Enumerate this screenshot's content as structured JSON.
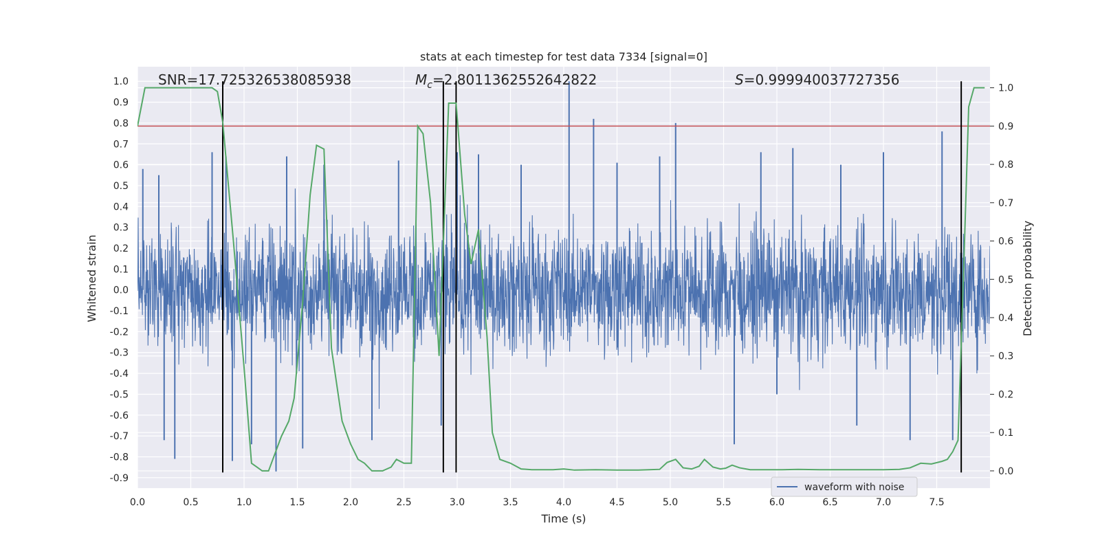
{
  "chart_data": {
    "type": "line",
    "title": "stats at each timestep for test data 7334 [signal=0]",
    "xlabel": "Time (s)",
    "ylabel": "Whitened strain",
    "y2label": "Detection probability",
    "xlim": [
      0.0,
      8.0
    ],
    "ylim": [
      -0.95,
      1.07
    ],
    "y2lim": [
      -0.045,
      1.055
    ],
    "x_ticks": [
      "0.0",
      "0.5",
      "1.0",
      "1.5",
      "2.0",
      "2.5",
      "3.0",
      "3.5",
      "4.0",
      "4.5",
      "5.0",
      "5.5",
      "6.0",
      "6.5",
      "7.0",
      "7.5"
    ],
    "y_ticks": [
      "-0.9",
      "-0.8",
      "-0.7",
      "-0.6",
      "-0.5",
      "-0.4",
      "-0.3",
      "-0.2",
      "-0.1",
      "0.0",
      "0.1",
      "0.2",
      "0.3",
      "0.4",
      "0.5",
      "0.6",
      "0.7",
      "0.8",
      "0.9",
      "1.0"
    ],
    "y2_ticks": [
      "0.0",
      "0.1",
      "0.2",
      "0.3",
      "0.4",
      "0.5",
      "0.6",
      "0.7",
      "0.8",
      "0.9",
      "1.0"
    ],
    "grid": true,
    "legend": {
      "placement": "lower-center-right",
      "entries": [
        "waveform with noise"
      ]
    },
    "annotations": {
      "snr": "SNR=17.725326538085938",
      "mc_symbol": "M",
      "mc_sub": "c",
      "mc_value": "=2.8011362552642822",
      "s_symbol": "S",
      "s_value": "=0.999940037727356"
    },
    "threshold": {
      "value": 0.9,
      "axis": "right",
      "color": "#c44e52"
    },
    "vertical_lines": [
      0.8,
      2.87,
      2.99,
      7.73
    ],
    "vertical_line_range": [
      -0.875,
      1.0
    ],
    "waveform": {
      "name": "waveform with noise",
      "color": "#4c72b0",
      "envelope_upper": 0.42,
      "envelope_lower": -0.45,
      "peaks": [
        {
          "x": 0.05,
          "y": 0.58
        },
        {
          "x": 0.2,
          "y": 0.55
        },
        {
          "x": 0.35,
          "y": -0.81
        },
        {
          "x": 0.25,
          "y": -0.72
        },
        {
          "x": 0.7,
          "y": 0.66
        },
        {
          "x": 0.83,
          "y": 0.64
        },
        {
          "x": 0.89,
          "y": -0.82
        },
        {
          "x": 1.07,
          "y": -0.74
        },
        {
          "x": 1.3,
          "y": -0.87
        },
        {
          "x": 1.4,
          "y": 0.64
        },
        {
          "x": 1.55,
          "y": -0.76
        },
        {
          "x": 1.75,
          "y": 0.6
        },
        {
          "x": 2.2,
          "y": -0.72
        },
        {
          "x": 2.45,
          "y": 0.62
        },
        {
          "x": 2.85,
          "y": -0.65
        },
        {
          "x": 3.0,
          "y": 0.66
        },
        {
          "x": 3.2,
          "y": 0.65
        },
        {
          "x": 3.6,
          "y": 0.6
        },
        {
          "x": 4.05,
          "y": 1.0
        },
        {
          "x": 4.28,
          "y": 0.82
        },
        {
          "x": 4.5,
          "y": 0.61
        },
        {
          "x": 4.9,
          "y": 0.64
        },
        {
          "x": 5.05,
          "y": 0.8
        },
        {
          "x": 5.6,
          "y": -0.74
        },
        {
          "x": 5.85,
          "y": 0.66
        },
        {
          "x": 6.0,
          "y": -0.5
        },
        {
          "x": 6.15,
          "y": 0.68
        },
        {
          "x": 6.6,
          "y": 0.6
        },
        {
          "x": 6.75,
          "y": -0.65
        },
        {
          "x": 7.0,
          "y": 0.66
        },
        {
          "x": 7.25,
          "y": -0.72
        },
        {
          "x": 7.55,
          "y": 0.76
        },
        {
          "x": 7.65,
          "y": -0.72
        }
      ]
    },
    "probability": {
      "color": "#55a868",
      "x": [
        0.0,
        0.07,
        0.7,
        0.75,
        0.8,
        0.9,
        1.0,
        1.07,
        1.12,
        1.17,
        1.23,
        1.27,
        1.35,
        1.42,
        1.47,
        1.55,
        1.62,
        1.68,
        1.75,
        1.82,
        1.92,
        2.0,
        2.07,
        2.13,
        2.2,
        2.3,
        2.38,
        2.43,
        2.5,
        2.57,
        2.63,
        2.68,
        2.75,
        2.83,
        2.92,
        2.99,
        3.07,
        3.13,
        3.2,
        3.28,
        3.33,
        3.4,
        3.5,
        3.6,
        3.7,
        3.9,
        4.0,
        4.1,
        4.3,
        4.5,
        4.7,
        4.8,
        4.9,
        4.97,
        5.05,
        5.12,
        5.2,
        5.27,
        5.32,
        5.4,
        5.47,
        5.52,
        5.58,
        5.65,
        5.75,
        5.9,
        6.05,
        6.2,
        6.4,
        6.6,
        6.8,
        7.0,
        7.15,
        7.25,
        7.35,
        7.45,
        7.55,
        7.6,
        7.65,
        7.7,
        7.75,
        7.8,
        7.85,
        7.95
      ],
      "y": [
        0.9,
        1.0,
        1.0,
        0.99,
        0.91,
        0.6,
        0.27,
        0.02,
        0.01,
        0.0,
        0.0,
        0.03,
        0.09,
        0.13,
        0.19,
        0.44,
        0.72,
        0.85,
        0.84,
        0.32,
        0.13,
        0.07,
        0.03,
        0.02,
        0.0,
        0.0,
        0.01,
        0.03,
        0.02,
        0.02,
        0.9,
        0.88,
        0.7,
        0.3,
        0.96,
        0.96,
        0.67,
        0.54,
        0.63,
        0.35,
        0.1,
        0.03,
        0.02,
        0.005,
        0.003,
        0.003,
        0.005,
        0.002,
        0.003,
        0.002,
        0.002,
        0.003,
        0.004,
        0.022,
        0.03,
        0.008,
        0.005,
        0.012,
        0.03,
        0.01,
        0.005,
        0.007,
        0.015,
        0.008,
        0.003,
        0.003,
        0.003,
        0.004,
        0.003,
        0.003,
        0.003,
        0.003,
        0.004,
        0.008,
        0.02,
        0.018,
        0.025,
        0.03,
        0.05,
        0.08,
        0.5,
        0.95,
        1.0,
        1.0
      ]
    }
  }
}
